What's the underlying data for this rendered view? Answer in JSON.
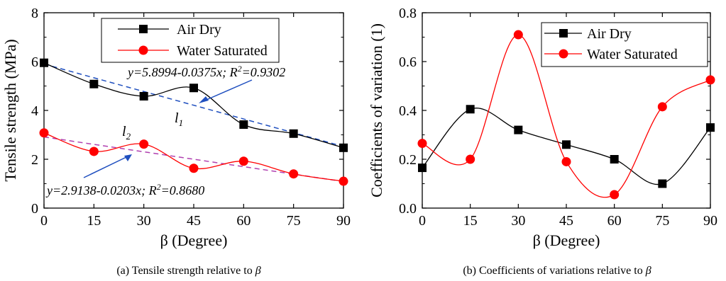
{
  "chart_data": [
    {
      "type": "line",
      "caption_text": "(a) Tensile strength relative to ",
      "caption_symbol": "β",
      "xlabel": "β (Degree)",
      "ylabel": "Tensile strength (MPa)",
      "xlim": [
        0,
        90
      ],
      "ylim": [
        0,
        8
      ],
      "xticks": [
        "0",
        "15",
        "30",
        "45",
        "60",
        "75",
        "90"
      ],
      "yticks": [
        "0",
        "2",
        "4",
        "6",
        "8"
      ],
      "x": [
        0,
        15,
        30,
        45,
        60,
        75,
        90
      ],
      "series": [
        {
          "name": "Air Dry",
          "marker": "square",
          "color": "#000000",
          "values": [
            5.95,
            5.08,
            4.58,
            4.92,
            3.42,
            3.05,
            2.47
          ]
        },
        {
          "name": "Water Saturated",
          "marker": "circle",
          "color": "#ff0000",
          "values": [
            3.08,
            2.32,
            2.62,
            1.63,
            1.92,
            1.4,
            1.1
          ]
        }
      ],
      "fits": [
        {
          "label": "l1",
          "equation": "y=5.8994-0.0375x; R2=0.9302",
          "intercept": 5.8994,
          "slope": -0.0375,
          "color": "#1f4fbf"
        },
        {
          "label": "l2",
          "equation": "y=2.9138-0.0203x; R2=0.8680",
          "intercept": 2.9138,
          "slope": -0.0203,
          "color": "#b040b0"
        }
      ],
      "legend_position": "top"
    },
    {
      "type": "line",
      "caption_text": "(b) Coefficients of variations relative to ",
      "caption_symbol": "β",
      "xlabel": "β (Degree)",
      "ylabel": "Coefficients of variation (1)",
      "xlim": [
        0,
        90
      ],
      "ylim": [
        0,
        0.8
      ],
      "xticks": [
        "0",
        "15",
        "30",
        "45",
        "60",
        "75",
        "90"
      ],
      "yticks": [
        "0.0",
        "0.2",
        "0.4",
        "0.6",
        "0.8"
      ],
      "x": [
        0,
        15,
        30,
        45,
        60,
        75,
        90
      ],
      "series": [
        {
          "name": "Air Dry",
          "marker": "square",
          "color": "#000000",
          "values": [
            0.165,
            0.405,
            0.32,
            0.26,
            0.2,
            0.1,
            0.33
          ]
        },
        {
          "name": "Water Saturated",
          "marker": "circle",
          "color": "#ff0000",
          "values": [
            0.265,
            0.2,
            0.71,
            0.19,
            0.055,
            0.415,
            0.525
          ]
        }
      ],
      "legend_position": "top-right"
    }
  ]
}
